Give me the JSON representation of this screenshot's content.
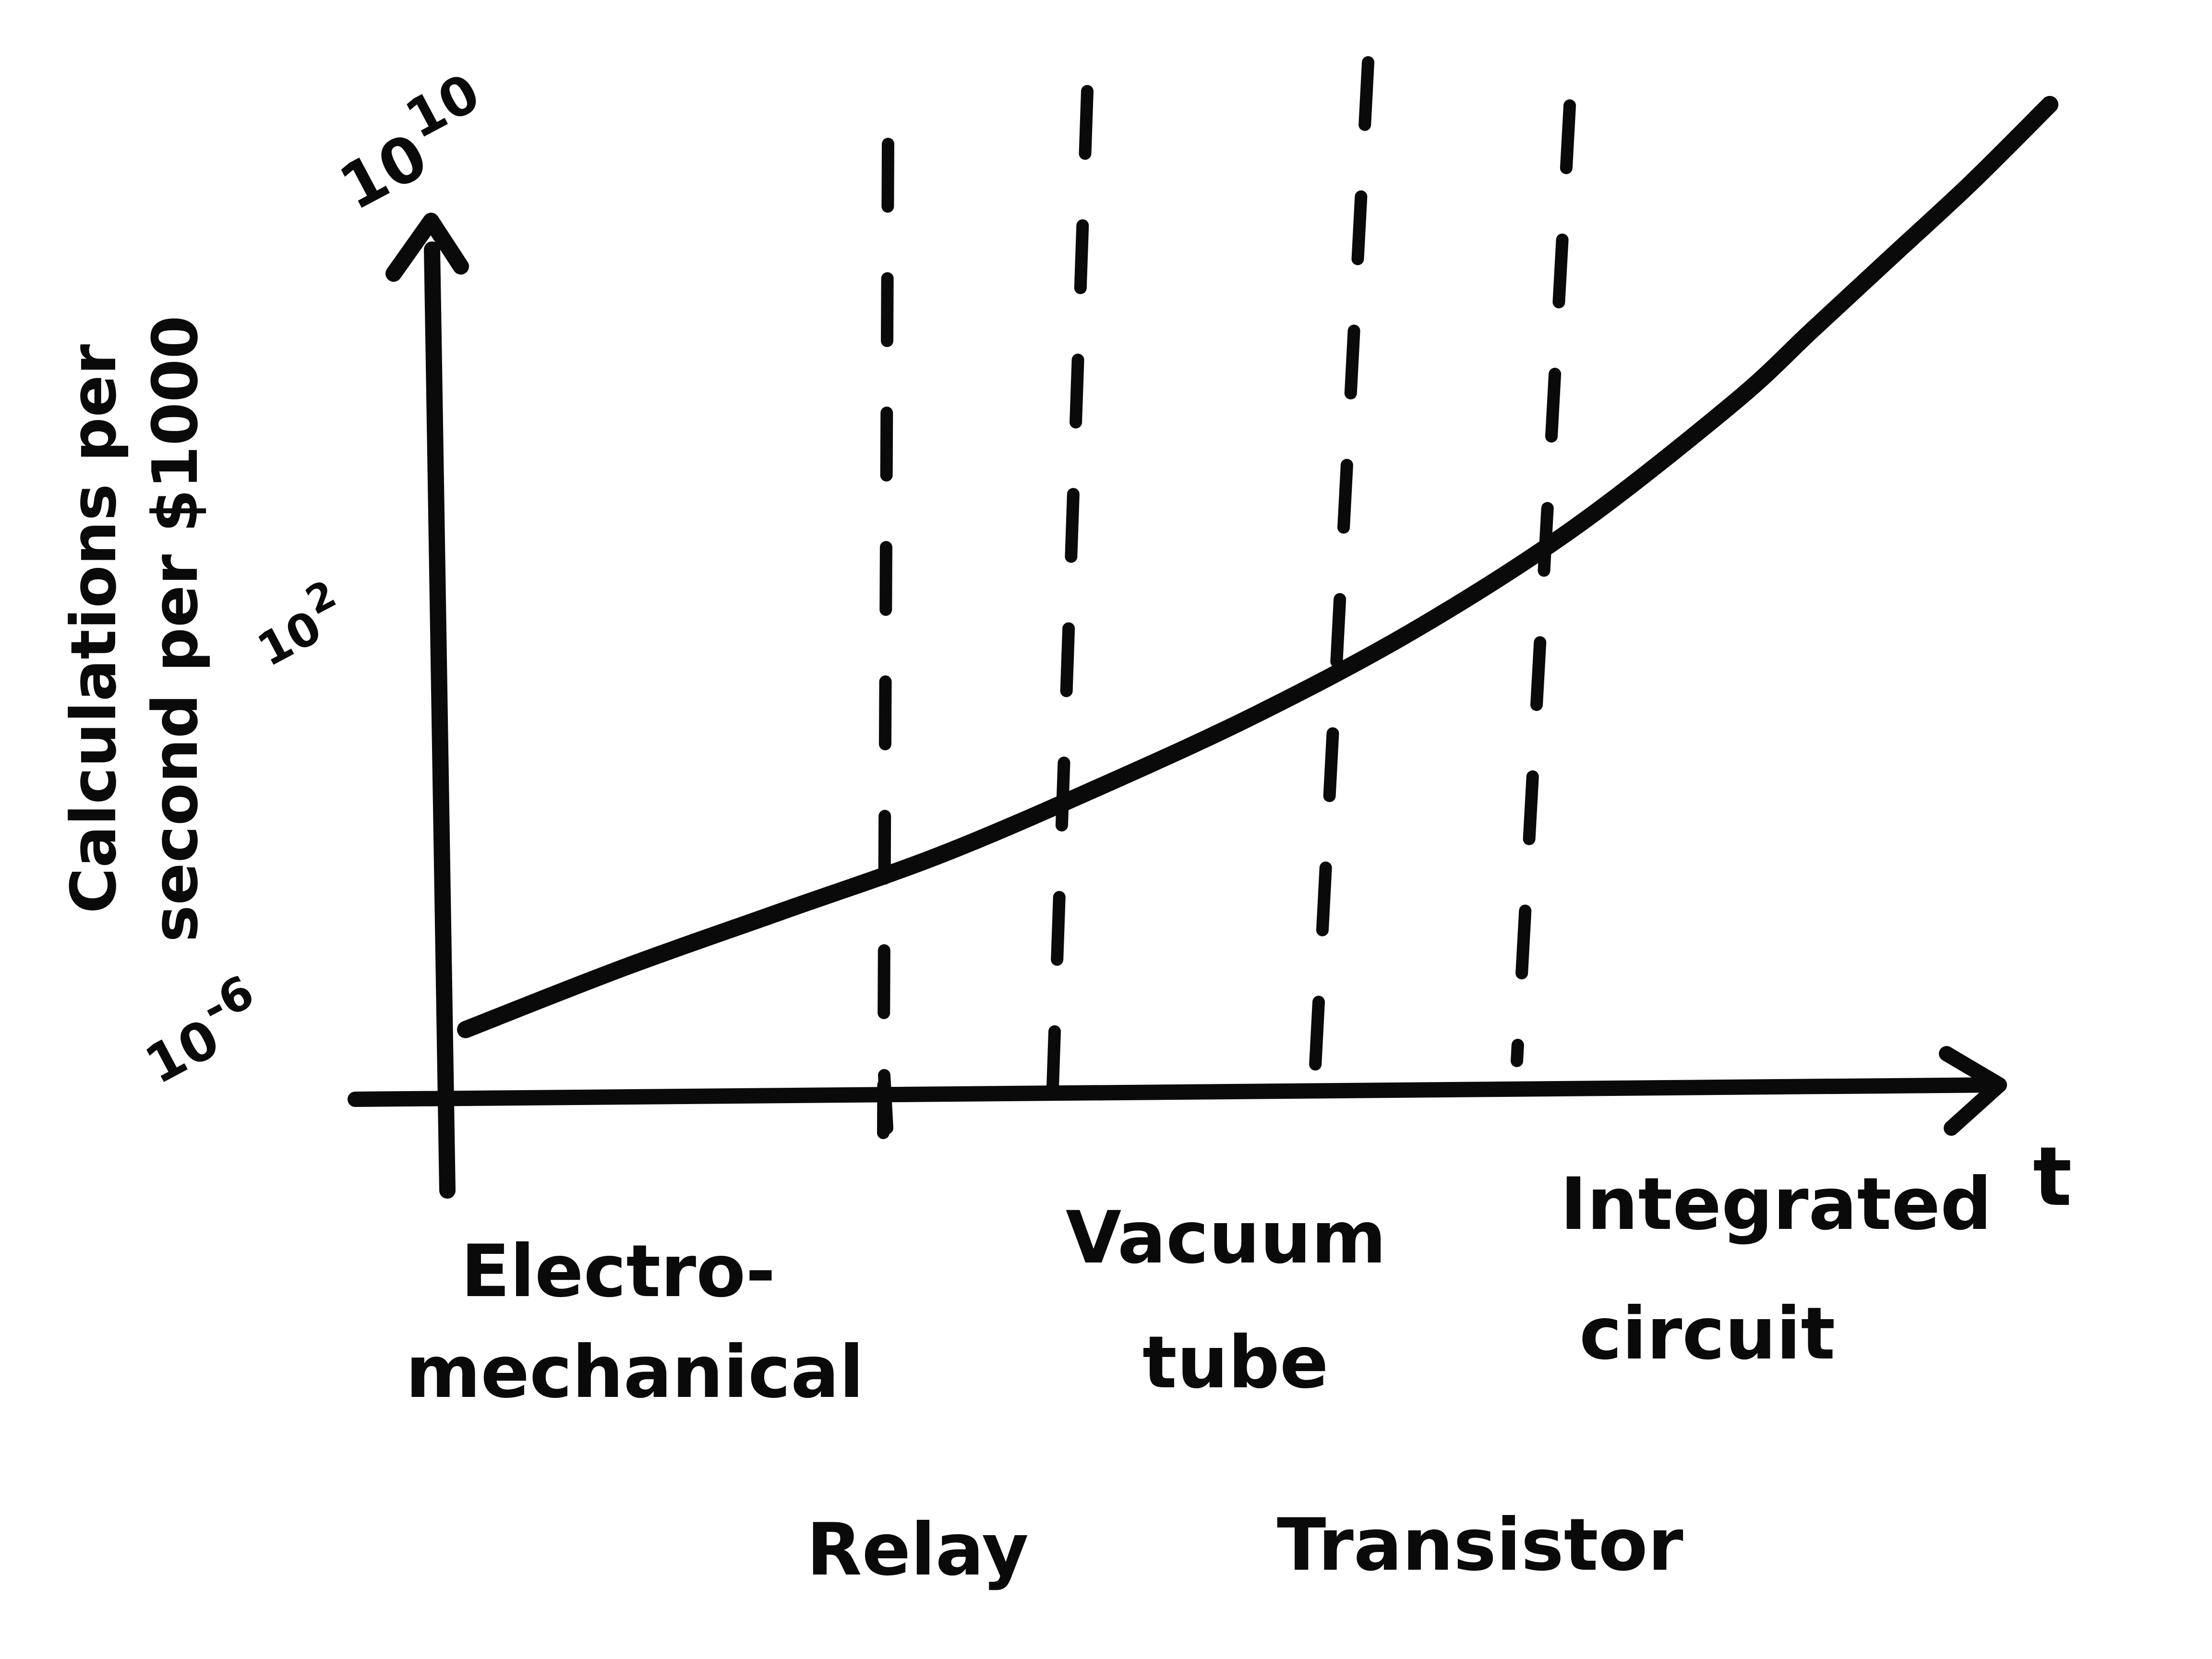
{
  "chart_data": {
    "type": "line",
    "title": "",
    "xlabel": "t",
    "ylabel_lines": [
      "Calculations per",
      "second per $1000"
    ],
    "y_scale": "log",
    "ylim": [
      -6,
      10
    ],
    "y_ticks": [
      {
        "value": -6,
        "base": "10",
        "exp": "-6"
      },
      {
        "value": 2,
        "base": "10",
        "exp": "2"
      },
      {
        "value": 10,
        "base": "10",
        "exp": "10"
      }
    ],
    "eras": [
      {
        "name_lines": [
          "Electro-",
          "mechanical"
        ]
      },
      {
        "name_lines": [
          "Relay"
        ]
      },
      {
        "name_lines": [
          "Vacuum",
          "tube"
        ]
      },
      {
        "name_lines": [
          "Transistor"
        ]
      },
      {
        "name_lines": [
          "Integrated",
          "circuit"
        ]
      }
    ],
    "series": [
      {
        "x": [
          0.0,
          0.1,
          0.2,
          0.3,
          0.4,
          0.5,
          0.6,
          0.7,
          0.8,
          0.85,
          0.9,
          0.95,
          1.0
        ],
        "y": [
          -5.7,
          -4.6,
          -3.6,
          -2.6,
          -1.4,
          -0.1,
          1.4,
          3.2,
          5.4,
          6.7,
          8.0,
          9.3,
          10.7
        ]
      }
    ],
    "grid": false,
    "legend": "none",
    "colors": {
      "ink": "#0a0a0a",
      "paper": "#ffffff"
    }
  }
}
